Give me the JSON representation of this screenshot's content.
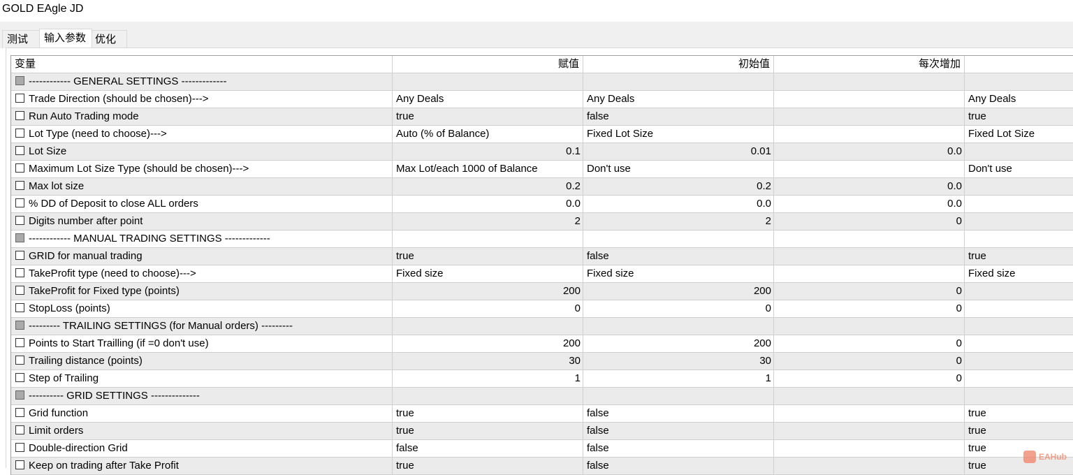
{
  "window": {
    "title": "GOLD EAgle JD"
  },
  "tabs": [
    {
      "label": "测试"
    },
    {
      "label": "输入参数"
    },
    {
      "label": "优化"
    }
  ],
  "columns": [
    "变量",
    "赋值",
    "初始值",
    "每次增加",
    ""
  ],
  "rows": [
    {
      "section": true,
      "name": "------------  GENERAL SETTINGS  -------------"
    },
    {
      "name": "Trade Direction (should be chosen)--->",
      "value": "Any Deals",
      "start": "Any Deals",
      "step": "",
      "stop": "Any Deals"
    },
    {
      "name": "Run Auto Trading mode",
      "value": "true",
      "start": "false",
      "step": "",
      "stop": "true"
    },
    {
      "name": "Lot Type (need to choose)--->",
      "value": "Auto (% of Balance)",
      "start": "Fixed Lot Size",
      "step": "",
      "stop": "Fixed Lot Size"
    },
    {
      "name": "Lot Size",
      "value": "0.1",
      "start": "0.01",
      "step": "0.0",
      "stop": "",
      "num": true
    },
    {
      "name": "Maximum Lot Size Type (should be chosen)--->",
      "value": "Max Lot/each 1000 of Balance",
      "start": "Don't use",
      "step": "",
      "stop": "Don't use"
    },
    {
      "name": "Max lot size",
      "value": "0.2",
      "start": "0.2",
      "step": "0.0",
      "stop": "",
      "num": true
    },
    {
      "name": "% DD of Deposit to close ALL orders",
      "value": "0.0",
      "start": "0.0",
      "step": "0.0",
      "stop": "",
      "num": true
    },
    {
      "name": "Digits number after point",
      "value": "2",
      "start": "2",
      "step": "0",
      "stop": "",
      "num": true
    },
    {
      "section": true,
      "name": "------------  MANUAL TRADING SETTINGS  -------------"
    },
    {
      "name": "GRID for manual trading",
      "value": "true",
      "start": "false",
      "step": "",
      "stop": "true"
    },
    {
      "name": "TakeProfit type (need to choose)--->",
      "value": "Fixed size",
      "start": "Fixed size",
      "step": "",
      "stop": "Fixed size"
    },
    {
      "name": "TakeProfit for Fixed type (points)",
      "value": "200",
      "start": "200",
      "step": "0",
      "stop": "",
      "num": true
    },
    {
      "name": "StopLoss (points)",
      "value": "0",
      "start": "0",
      "step": "0",
      "stop": "",
      "num": true
    },
    {
      "section": true,
      "name": "--------- TRAILING SETTINGS (for Manual orders) ---------"
    },
    {
      "name": "Points to Start Trailling (if =0 don't use)",
      "value": "200",
      "start": "200",
      "step": "0",
      "stop": "",
      "num": true
    },
    {
      "name": "Trailing distance (points)",
      "value": "30",
      "start": "30",
      "step": "0",
      "stop": "",
      "num": true
    },
    {
      "name": "Step of Trailing",
      "value": "1",
      "start": "1",
      "step": "0",
      "stop": "",
      "num": true
    },
    {
      "section": true,
      "name": "---------- GRID SETTINGS --------------"
    },
    {
      "name": "Grid function",
      "value": "true",
      "start": "false",
      "step": "",
      "stop": "true"
    },
    {
      "name": "Limit orders",
      "value": "true",
      "start": "false",
      "step": "",
      "stop": "true"
    },
    {
      "name": "Double-direction Grid",
      "value": "false",
      "start": "false",
      "step": "",
      "stop": "true"
    },
    {
      "name": "Keep on trading after Take Profit",
      "value": "true",
      "start": "false",
      "step": "",
      "stop": "true"
    }
  ],
  "watermark": "EAHub"
}
